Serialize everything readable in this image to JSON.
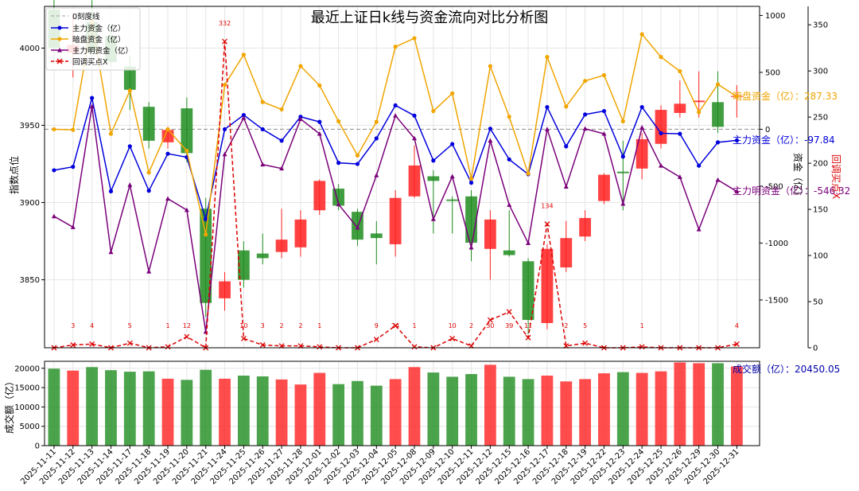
{
  "chart_data": {
    "type": "candlestick+line+bar",
    "title": "最近上证日k线与资金流向对比分析图",
    "dates": [
      "2025-11-11",
      "2025-11-12",
      "2025-11-13",
      "2025-11-14",
      "2025-11-17",
      "2025-11-18",
      "2025-11-19",
      "2025-11-20",
      "2025-11-21",
      "2025-11-24",
      "2025-11-25",
      "2025-11-26",
      "2025-11-27",
      "2025-11-28",
      "2025-12-01",
      "2025-12-02",
      "2025-12-03",
      "2025-12-04",
      "2025-12-05",
      "2025-12-08",
      "2025-12-09",
      "2025-12-10",
      "2025-12-11",
      "2025-12-12",
      "2025-12-15",
      "2025-12-16",
      "2025-12-17",
      "2025-12-18",
      "2025-12-19",
      "2025-12-22",
      "2025-12-23",
      "2025-12-24",
      "2025-12-25",
      "2025-12-26",
      "2025-12-29",
      "2025-12-30",
      "2025-12-31"
    ],
    "candles": {
      "open": [
        4025,
        3997,
        4017,
        4008,
        3988,
        3962,
        3939,
        3961,
        3896,
        3838,
        3869,
        3867,
        3868,
        3871,
        3895,
        3909,
        3894,
        3880,
        3873,
        3904,
        3917,
        3902,
        3904,
        3870,
        3869,
        3862,
        3822,
        3858,
        3878,
        3901,
        3920,
        3922,
        3938,
        3958,
        3965,
        3965,
        3969
      ],
      "close": [
        4000,
        4002,
        3998,
        3991,
        3973,
        3940,
        3947,
        3932,
        3835,
        3849,
        3850,
        3864,
        3876,
        3889,
        3914,
        3898,
        3876,
        3877,
        3903,
        3924,
        3914,
        3901,
        3874,
        3889,
        3866,
        3824,
        3870,
        3877,
        3890,
        3918,
        3919,
        3941,
        3960,
        3964,
        3966,
        3949,
        3969
      ],
      "high": [
        4032,
        4023,
        4031,
        4015,
        3995,
        3965,
        3949,
        3968,
        3903,
        3855,
        3875,
        3880,
        3896,
        3895,
        3915,
        3912,
        3896,
        3888,
        3908,
        3937,
        3921,
        3904,
        3908,
        3895,
        3895,
        3864,
        3873,
        3888,
        3895,
        3919,
        3940,
        3945,
        3963,
        3979,
        3985,
        3985,
        3976
      ],
      "low": [
        3990,
        3981,
        3990,
        3988,
        3960,
        3935,
        3935,
        3926,
        3826,
        3830,
        3845,
        3860,
        3864,
        3865,
        3892,
        3895,
        3872,
        3860,
        3865,
        3903,
        3880,
        3880,
        3862,
        3850,
        3865,
        3815,
        3818,
        3855,
        3875,
        3899,
        3895,
        3915,
        3935,
        3955,
        3955,
        3945,
        3955
      ]
    },
    "y_left": {
      "label": "指数点位",
      "ticks": [
        3850,
        3900,
        3950,
        4000
      ],
      "range": [
        3806,
        4027
      ]
    },
    "y_right": {
      "label": "资金（亿）",
      "ticks": [
        -1500,
        -1000,
        -500,
        0,
        500,
        1000
      ],
      "range": [
        -1920,
        1080
      ]
    },
    "y_right2": {
      "label": "回调买点X",
      "ticks": [
        0,
        50,
        100,
        150,
        200,
        250,
        300,
        350
      ],
      "range": [
        0,
        370
      ]
    },
    "series": [
      {
        "name": "主力资金（亿）",
        "color": "#0000dd",
        "marker": "circle",
        "values": [
          -360,
          -330,
          275,
          -545,
          -150,
          -540,
          -215,
          -245,
          -790,
          0,
          125,
          0,
          -100,
          110,
          65,
          -295,
          -305,
          -80,
          210,
          120,
          -275,
          -130,
          -470,
          5,
          -265,
          -395,
          195,
          -150,
          130,
          160,
          -240,
          195,
          -35,
          -40,
          -320,
          -115,
          -97.84
        ]
      },
      {
        "name": "暗盘资金（亿）",
        "color": "#f0a500",
        "marker": "circle",
        "values": [
          0,
          -5,
          945,
          -40,
          340,
          -380,
          0,
          -190,
          -925,
          390,
          655,
          240,
          175,
          555,
          385,
          70,
          -230,
          65,
          725,
          800,
          160,
          315,
          -435,
          555,
          110,
          -390,
          635,
          200,
          425,
          475,
          70,
          835,
          635,
          510,
          150,
          395,
          287.33
        ]
      },
      {
        "name": "主力明资金（亿）",
        "color": "#7a007a",
        "marker": "triangle",
        "values": [
          -765,
          -860,
          200,
          -1080,
          -490,
          -1250,
          -610,
          -710,
          -1780,
          -220,
          100,
          -310,
          -345,
          90,
          -40,
          -660,
          -865,
          -405,
          120,
          -80,
          -790,
          -415,
          -1040,
          -100,
          -665,
          -1000,
          0,
          -505,
          5,
          -40,
          -655,
          15,
          -320,
          -420,
          -880,
          -445,
          -546.32
        ]
      },
      {
        "name": "回调买点X",
        "color": "#dd0000",
        "marker": "x",
        "axis": "y_right2",
        "values": [
          0,
          3,
          4,
          0,
          5,
          0,
          1,
          12,
          0,
          332,
          10,
          3,
          2,
          2,
          1,
          0,
          0,
          9,
          24,
          1,
          0,
          10,
          2,
          30,
          39,
          11,
          134,
          2,
          5,
          0,
          0,
          1,
          0,
          0,
          0,
          0,
          4
        ]
      }
    ],
    "zero_line": {
      "name": "0刻度线",
      "value": 0
    },
    "bottom_panel": {
      "ylabel": "成交额（亿）",
      "ticks": [
        0,
        5000,
        10000,
        15000,
        20000
      ],
      "range": [
        0,
        21800
      ],
      "values": [
        19900,
        19400,
        20300,
        19500,
        19100,
        19200,
        17300,
        17000,
        19600,
        17300,
        18100,
        17900,
        17100,
        15800,
        18800,
        15900,
        16700,
        15500,
        17200,
        20300,
        18900,
        17800,
        18500,
        20900,
        17800,
        17200,
        18100,
        16600,
        17200,
        18700,
        19000,
        18800,
        19200,
        21500,
        21300,
        21300,
        20450.05
      ]
    },
    "annotations": {
      "main_fund": "主力资金（亿）：-97.84",
      "dark_fund": "暗盘资金（亿）：287.33",
      "explicit_fund": "主力明资金（亿）：-546.32",
      "turnover": "成交额（亿）：20450.05"
    },
    "colors": {
      "up": "#ff2020",
      "down": "#1e8c1e",
      "grid": "#e6e6e6"
    },
    "legend_position": "top-left",
    "grid": true
  }
}
